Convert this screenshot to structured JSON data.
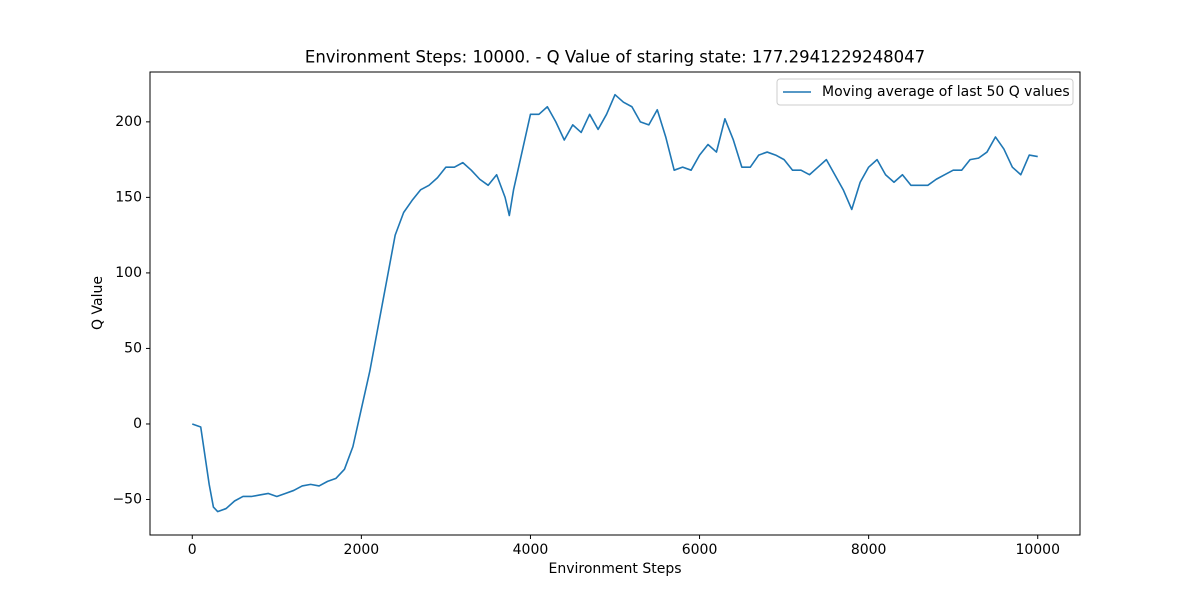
{
  "chart_data": {
    "type": "line",
    "title": "Environment Steps: 10000. - Q Value of staring state: 177.2941229248047",
    "x_label": "Environment Steps",
    "y_label": "Q Value",
    "x": [
      0,
      100,
      200,
      250,
      300,
      400,
      500,
      600,
      700,
      800,
      900,
      1000,
      1100,
      1200,
      1300,
      1400,
      1500,
      1600,
      1700,
      1800,
      1900,
      2000,
      2100,
      2200,
      2300,
      2400,
      2500,
      2600,
      2700,
      2800,
      2900,
      3000,
      3100,
      3200,
      3300,
      3400,
      3500,
      3600,
      3700,
      3750,
      3800,
      3900,
      4000,
      4100,
      4200,
      4300,
      4400,
      4500,
      4600,
      4700,
      4800,
      4900,
      5000,
      5100,
      5200,
      5300,
      5400,
      5500,
      5600,
      5700,
      5800,
      5900,
      6000,
      6100,
      6200,
      6300,
      6400,
      6500,
      6600,
      6700,
      6800,
      6900,
      7000,
      7100,
      7200,
      7300,
      7400,
      7500,
      7600,
      7700,
      7800,
      7900,
      8000,
      8100,
      8200,
      8300,
      8400,
      8500,
      8600,
      8700,
      8800,
      8900,
      9000,
      9100,
      9200,
      9300,
      9400,
      9500,
      9600,
      9700,
      9800,
      9900,
      10000
    ],
    "series": [
      {
        "name": "Moving average of last 50 Q values",
        "color": "#1f77b4",
        "values": [
          0,
          -2,
          -40,
          -55,
          -58,
          -56,
          -51,
          -48,
          -48,
          -47,
          -46,
          -48,
          -46,
          -44,
          -41,
          -40,
          -41,
          -38,
          -36,
          -30,
          -15,
          10,
          35,
          65,
          95,
          125,
          140,
          148,
          155,
          158,
          163,
          170,
          170,
          173,
          168,
          162,
          158,
          165,
          150,
          138,
          155,
          180,
          205,
          205,
          210,
          200,
          188,
          198,
          193,
          205,
          195,
          205,
          218,
          213,
          210,
          200,
          198,
          208,
          190,
          168,
          170,
          168,
          178,
          185,
          180,
          202,
          188,
          170,
          170,
          178,
          180,
          178,
          175,
          168,
          168,
          165,
          170,
          175,
          165,
          155,
          142,
          160,
          170,
          175,
          165,
          160,
          165,
          158,
          158,
          158,
          162,
          165,
          168,
          168,
          175,
          176,
          180,
          190,
          182,
          170,
          165,
          178,
          177
        ]
      }
    ],
    "xlim": [
      -500,
      10500
    ],
    "ylim": [
      -73.5,
      233
    ],
    "xticks": [
      0,
      2000,
      4000,
      6000,
      8000,
      10000
    ],
    "yticks": [
      {
        "value": -50,
        "label": "−50"
      },
      0,
      50,
      100,
      150,
      200
    ],
    "legend": "upper right"
  }
}
